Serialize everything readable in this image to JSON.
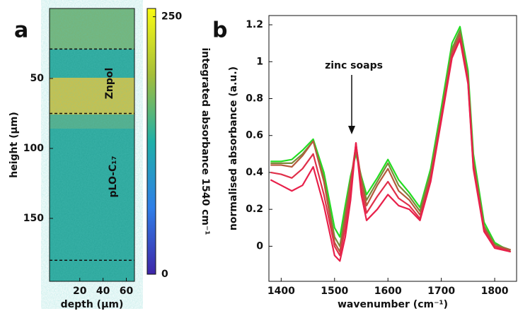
{
  "chart_data": [
    {
      "type": "heatmap",
      "panel_label": "a",
      "xlabel": "depth (µm)",
      "ylabel": "height (µm)",
      "xlim": [
        -6,
        67
      ],
      "xticks": [
        20,
        40,
        60
      ],
      "ylim": [
        0,
        195
      ],
      "yticks": [
        50,
        100,
        150
      ],
      "dashed_lines": [
        29,
        75,
        180
      ],
      "annotations": [
        "Znpol",
        "pLO-C₁₇"
      ],
      "colorbar": {
        "label": "integrated absorbance 1540 cm⁻¹",
        "lim": [
          0,
          258
        ],
        "ticks": [
          0,
          250
        ]
      }
    },
    {
      "type": "line",
      "panel_label": "b",
      "xlabel": "wavenumber (cm⁻¹)",
      "ylabel": "normalised absorbance (a.u.)",
      "xlim": [
        1377,
        1841
      ],
      "xticks": [
        1400,
        1500,
        1600,
        1700,
        1800
      ],
      "ylim": [
        -0.19,
        1.25
      ],
      "yticks": [
        0,
        0.2,
        0.4,
        0.6,
        0.8,
        1,
        1.2
      ],
      "annotation": "zinc soaps",
      "x": [
        1380,
        1400,
        1420,
        1440,
        1460,
        1480,
        1500,
        1510,
        1520,
        1530,
        1540,
        1550,
        1560,
        1580,
        1600,
        1620,
        1640,
        1660,
        1680,
        1700,
        1720,
        1735,
        1750,
        1760,
        1780,
        1800,
        1830
      ],
      "series": [
        {
          "color": "#22dd22",
          "values": [
            0.46,
            0.46,
            0.47,
            0.52,
            0.58,
            0.4,
            0.1,
            0.05,
            0.22,
            0.38,
            0.5,
            0.38,
            0.28,
            0.37,
            0.47,
            0.36,
            0.29,
            0.21,
            0.42,
            0.75,
            1.1,
            1.19,
            0.95,
            0.5,
            0.13,
            0.02,
            -0.03
          ]
        },
        {
          "color": "#7a8a3a",
          "values": [
            0.45,
            0.45,
            0.45,
            0.5,
            0.57,
            0.37,
            0.05,
            0.0,
            0.18,
            0.36,
            0.52,
            0.37,
            0.25,
            0.35,
            0.45,
            0.33,
            0.27,
            0.19,
            0.4,
            0.72,
            1.07,
            1.17,
            0.92,
            0.47,
            0.11,
            0.01,
            -0.02
          ]
        },
        {
          "color": "#b45a3c",
          "values": [
            0.44,
            0.44,
            0.43,
            0.49,
            0.57,
            0.35,
            0.02,
            -0.03,
            0.15,
            0.35,
            0.55,
            0.36,
            0.22,
            0.33,
            0.42,
            0.3,
            0.25,
            0.17,
            0.38,
            0.7,
            1.05,
            1.15,
            0.9,
            0.45,
            0.1,
            0.0,
            -0.02
          ]
        },
        {
          "color": "#e0304a",
          "values": [
            0.4,
            0.39,
            0.37,
            0.42,
            0.5,
            0.28,
            0.0,
            -0.05,
            0.1,
            0.3,
            0.56,
            0.32,
            0.18,
            0.27,
            0.35,
            0.26,
            0.22,
            0.15,
            0.36,
            0.69,
            1.03,
            1.13,
            0.89,
            0.43,
            0.09,
            0.0,
            -0.03
          ]
        },
        {
          "color": "#e8204a",
          "values": [
            0.36,
            0.33,
            0.3,
            0.33,
            0.43,
            0.22,
            -0.05,
            -0.08,
            0.05,
            0.25,
            0.56,
            0.28,
            0.14,
            0.2,
            0.28,
            0.22,
            0.2,
            0.14,
            0.35,
            0.68,
            1.02,
            1.12,
            0.88,
            0.42,
            0.08,
            -0.01,
            -0.03
          ]
        }
      ]
    }
  ]
}
